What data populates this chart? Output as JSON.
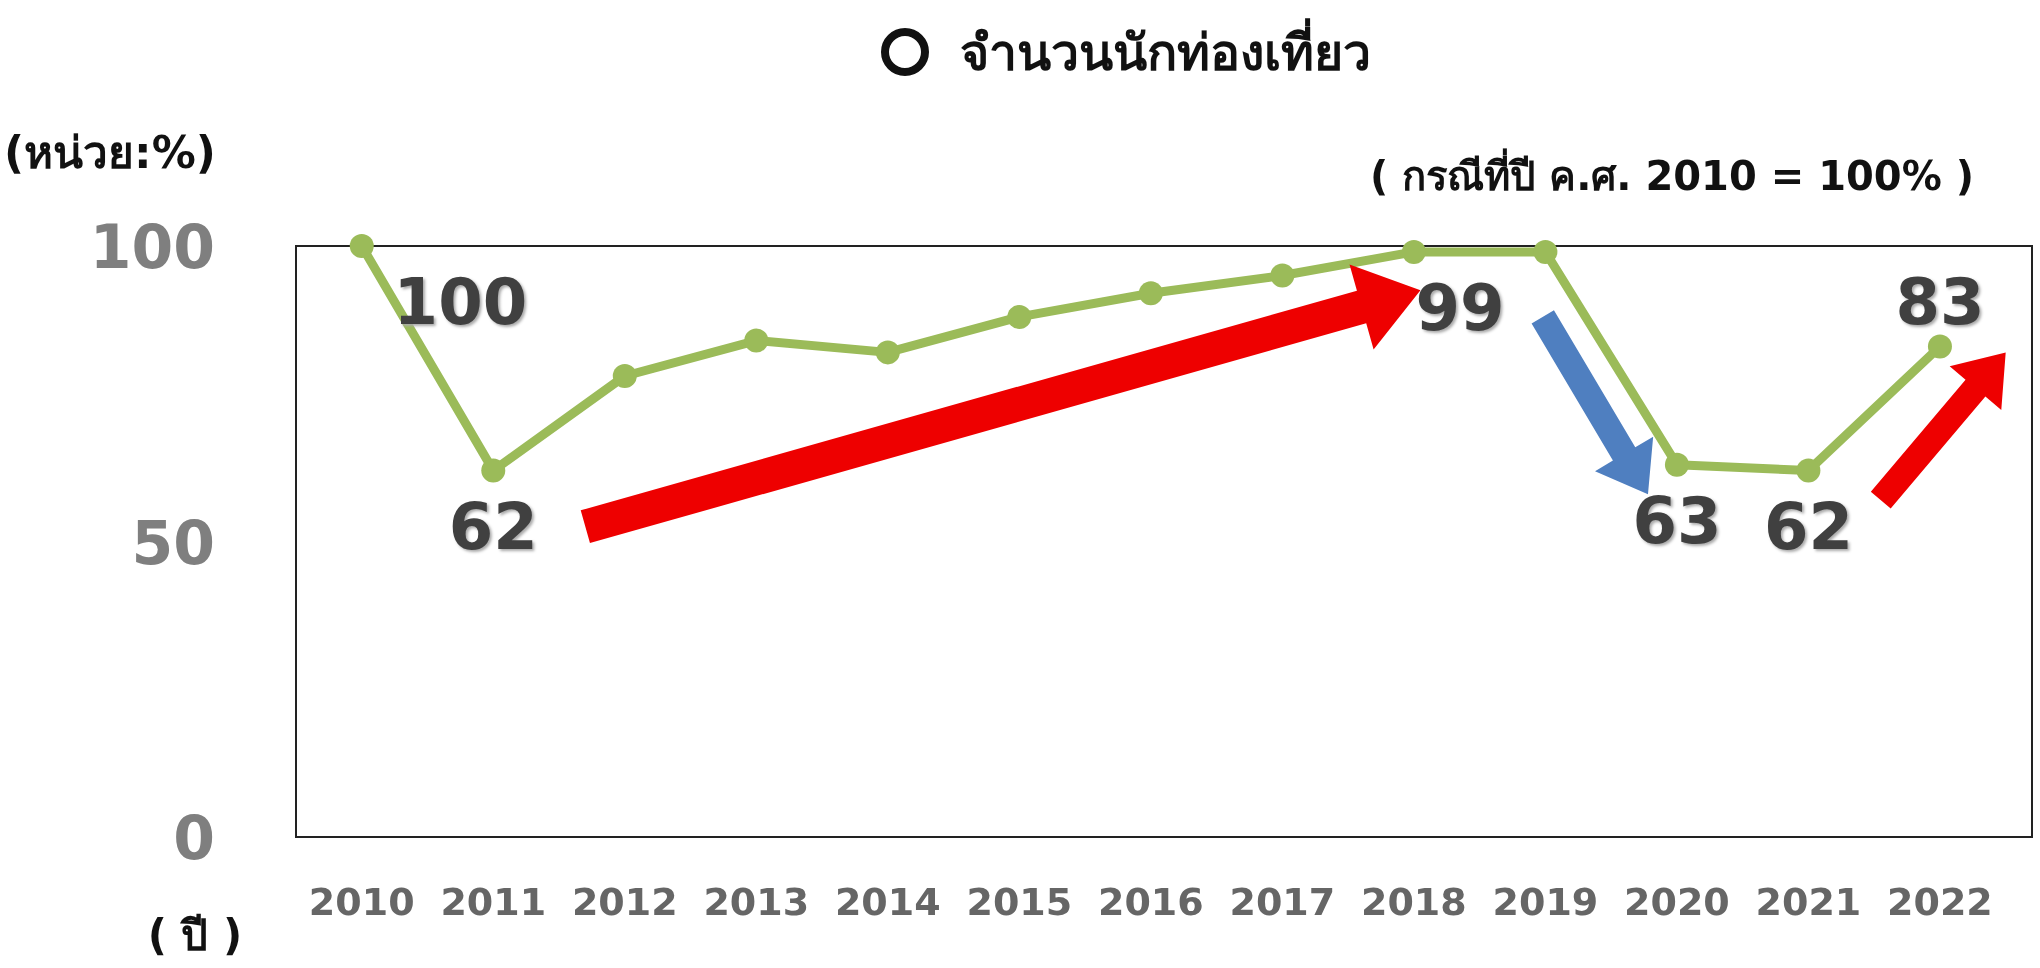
{
  "chart_data": {
    "type": "line",
    "title": "จำนวนนักท่องเที่ยว",
    "subtitle": "( กรณีที่ปี ค.ศ. 2010 = 100% )",
    "ylabel": "(หน่วย:%)",
    "xlabel": "( ปี )",
    "categories": [
      "2010",
      "2011",
      "2012",
      "2013",
      "2014",
      "2015",
      "2016",
      "2017",
      "2018",
      "2019",
      "2020",
      "2021",
      "2022"
    ],
    "series": [
      {
        "color": "#9bbb59",
        "values": [
          100,
          62,
          78,
          84,
          82,
          88,
          92,
          95,
          99,
          99,
          63,
          62,
          83
        ],
        "value_labels": [
          "100",
          "62",
          null,
          null,
          null,
          null,
          null,
          null,
          "99",
          null,
          "63",
          "62",
          "83"
        ]
      }
    ],
    "ylim": [
      0,
      100
    ],
    "yticks": [
      0,
      50,
      100
    ],
    "grid": false,
    "marker": "circle",
    "line_style": "solid"
  }
}
